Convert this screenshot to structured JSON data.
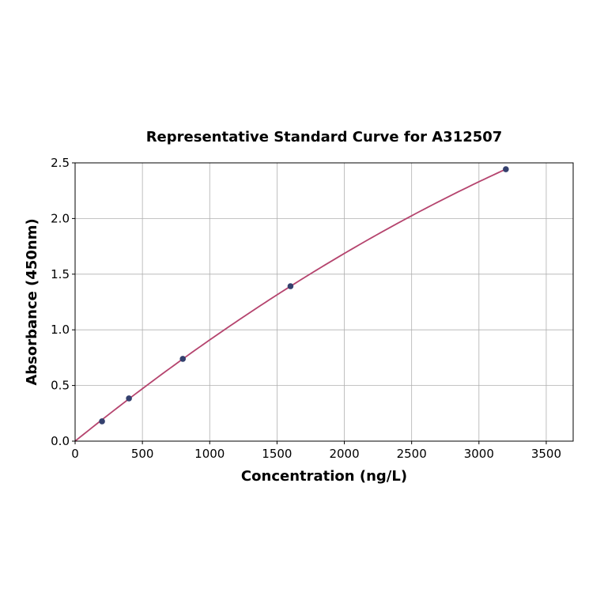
{
  "chart_data": {
    "type": "scatter",
    "title": "Representative Standard Curve for A312507",
    "xlabel": "Concentration (ng/L)",
    "ylabel": "Absorbance (450nm)",
    "xlim": [
      0,
      3700
    ],
    "ylim": [
      0,
      2.5
    ],
    "xticks": [
      0,
      500,
      1000,
      1500,
      2000,
      2500,
      3000,
      3500
    ],
    "yticks": [
      0.0,
      0.5,
      1.0,
      1.5,
      2.0,
      2.5
    ],
    "xtick_labels": [
      "0",
      "500",
      "1000",
      "1500",
      "2000",
      "2500",
      "3000",
      "3500"
    ],
    "ytick_labels": [
      "0.0",
      "0.5",
      "1.0",
      "1.5",
      "2.0",
      "2.5"
    ],
    "grid": true,
    "points": {
      "x": [
        200,
        400,
        800,
        1600,
        3200
      ],
      "y": [
        0.178,
        0.384,
        0.739,
        1.392,
        2.443
      ]
    },
    "fit_range": [
      0,
      3200
    ],
    "colors": {
      "curve": "#b5446e",
      "points": "#34406e",
      "grid": "#b0b0b0"
    }
  }
}
